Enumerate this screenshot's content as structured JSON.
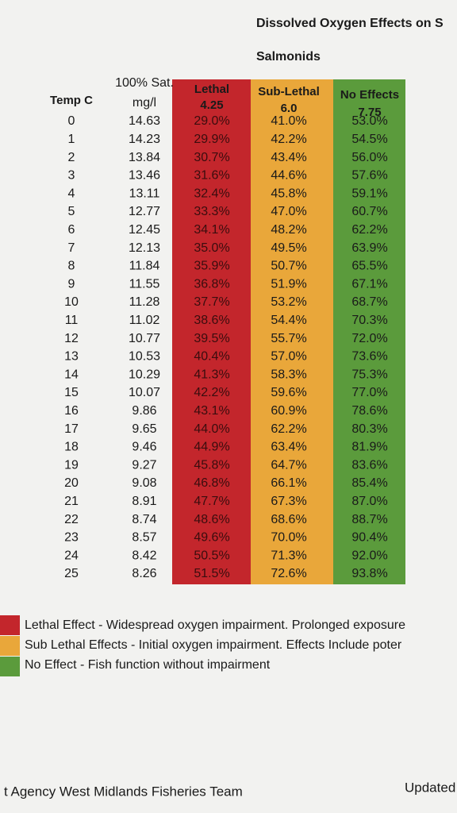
{
  "header": {
    "title": "Dissolved Oxygen Effects on S",
    "subtitle": "Salmonids"
  },
  "table": {
    "columns": [
      {
        "top": null,
        "label": "Temp C"
      },
      {
        "top": "100% Sat.",
        "label": "mg/l"
      },
      {
        "top": "Lethal",
        "label": "4.25"
      },
      {
        "top": "Sub-Lethal",
        "label": "6.0"
      },
      {
        "top": "No Effects",
        "label": "7.75"
      }
    ],
    "rows": [
      [
        "0",
        "14.63",
        "29.0%",
        "41.0%",
        "53.0%"
      ],
      [
        "1",
        "14.23",
        "29.9%",
        "42.2%",
        "54.5%"
      ],
      [
        "2",
        "13.84",
        "30.7%",
        "43.4%",
        "56.0%"
      ],
      [
        "3",
        "13.46",
        "31.6%",
        "44.6%",
        "57.6%"
      ],
      [
        "4",
        "13.11",
        "32.4%",
        "45.8%",
        "59.1%"
      ],
      [
        "5",
        "12.77",
        "33.3%",
        "47.0%",
        "60.7%"
      ],
      [
        "6",
        "12.45",
        "34.1%",
        "48.2%",
        "62.2%"
      ],
      [
        "7",
        "12.13",
        "35.0%",
        "49.5%",
        "63.9%"
      ],
      [
        "8",
        "11.84",
        "35.9%",
        "50.7%",
        "65.5%"
      ],
      [
        "9",
        "11.55",
        "36.8%",
        "51.9%",
        "67.1%"
      ],
      [
        "10",
        "11.28",
        "37.7%",
        "53.2%",
        "68.7%"
      ],
      [
        "11",
        "11.02",
        "38.6%",
        "54.4%",
        "70.3%"
      ],
      [
        "12",
        "10.77",
        "39.5%",
        "55.7%",
        "72.0%"
      ],
      [
        "13",
        "10.53",
        "40.4%",
        "57.0%",
        "73.6%"
      ],
      [
        "14",
        "10.29",
        "41.3%",
        "58.3%",
        "75.3%"
      ],
      [
        "15",
        "10.07",
        "42.2%",
        "59.6%",
        "77.0%"
      ],
      [
        "16",
        "9.86",
        "43.1%",
        "60.9%",
        "78.6%"
      ],
      [
        "17",
        "9.65",
        "44.0%",
        "62.2%",
        "80.3%"
      ],
      [
        "18",
        "9.46",
        "44.9%",
        "63.4%",
        "81.9%"
      ],
      [
        "19",
        "9.27",
        "45.8%",
        "64.7%",
        "83.6%"
      ],
      [
        "20",
        "9.08",
        "46.8%",
        "66.1%",
        "85.4%"
      ],
      [
        "21",
        "8.91",
        "47.7%",
        "67.3%",
        "87.0%"
      ],
      [
        "22",
        "8.74",
        "48.6%",
        "68.6%",
        "88.7%"
      ],
      [
        "23",
        "8.57",
        "49.6%",
        "70.0%",
        "90.4%"
      ],
      [
        "24",
        "8.42",
        "50.5%",
        "71.3%",
        "92.0%"
      ],
      [
        "25",
        "8.26",
        "51.5%",
        "72.6%",
        "93.8%"
      ]
    ]
  },
  "legend": [
    "Lethal Effect - Widespread oxygen impairment. Prolonged exposure",
    "Sub Lethal Effects - Initial oxygen impairment. Effects Include poter",
    "No Effect - Fish function without impairment"
  ],
  "footer": {
    "left": "t Agency West Midlands Fisheries Team",
    "right": "Updated"
  }
}
